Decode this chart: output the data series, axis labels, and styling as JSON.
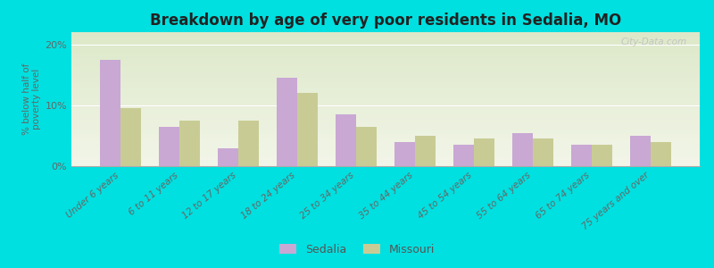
{
  "title": "Breakdown by age of very poor residents in Sedalia, MO",
  "ylabel": "% below half of\npoverty level",
  "categories": [
    "Under 6 years",
    "6 to 11 years",
    "12 to 17 years",
    "18 to 24 years",
    "25 to 34 years",
    "35 to 44 years",
    "45 to 54 years",
    "55 to 64 years",
    "65 to 74 years",
    "75 years and over"
  ],
  "sedalia": [
    17.5,
    6.5,
    3.0,
    14.5,
    8.5,
    4.0,
    3.5,
    5.5,
    3.5,
    5.0
  ],
  "missouri": [
    9.5,
    7.5,
    7.5,
    12.0,
    6.5,
    5.0,
    4.5,
    4.5,
    3.5,
    4.0
  ],
  "sedalia_color": "#c9a8d4",
  "missouri_color": "#c8cc94",
  "background_color": "#00e0e0",
  "plot_bg_color_top": "#dce8c8",
  "plot_bg_color_bottom": "#f2f5e8",
  "ylim": [
    0,
    22
  ],
  "yticks": [
    0,
    10,
    20
  ],
  "ytick_labels": [
    "0%",
    "10%",
    "20%"
  ],
  "bar_width": 0.35,
  "legend_sedalia": "Sedalia",
  "legend_missouri": "Missouri",
  "watermark": "City-Data.com"
}
